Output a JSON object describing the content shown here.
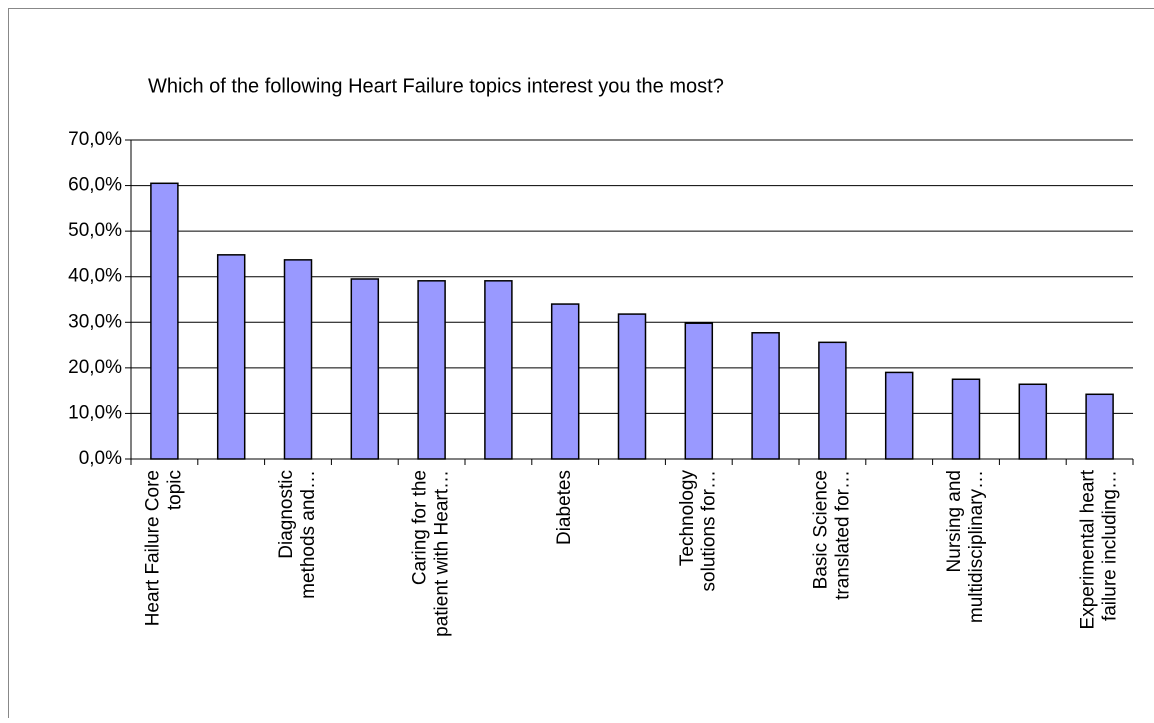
{
  "chart_data": {
    "type": "bar",
    "title": "Which of the following Heart Failure topics interest you the most?",
    "categories": [
      "Heart Failure Core\ntopic",
      null,
      "Diagnostic\nmethods and…",
      null,
      "Caring for the\npatient with Heart…",
      null,
      "Diabetes",
      null,
      "Technology\nsolutions for…",
      null,
      "Basic Science\ntranslated for…",
      null,
      "Nursing and\nmultidisciplinary…",
      null,
      "Experimental heart\nfailure including…"
    ],
    "values": [
      60.5,
      44.8,
      43.7,
      39.5,
      39.1,
      39.1,
      34.0,
      31.8,
      29.8,
      27.7,
      25.6,
      19.0,
      17.5,
      16.4,
      14.2
    ],
    "color": "#9999ff",
    "ylim": [
      0,
      70
    ],
    "yticks": [
      {
        "value": 0,
        "label": "0,0%"
      },
      {
        "value": 10,
        "label": "10,0%"
      },
      {
        "value": 20,
        "label": "20,0%"
      },
      {
        "value": 30,
        "label": "30,0%"
      },
      {
        "value": 40,
        "label": "40,0%"
      },
      {
        "value": 50,
        "label": "50,0%"
      },
      {
        "value": 60,
        "label": "60,0%"
      },
      {
        "value": 70,
        "label": "70,0%"
      }
    ],
    "grid": true
  }
}
